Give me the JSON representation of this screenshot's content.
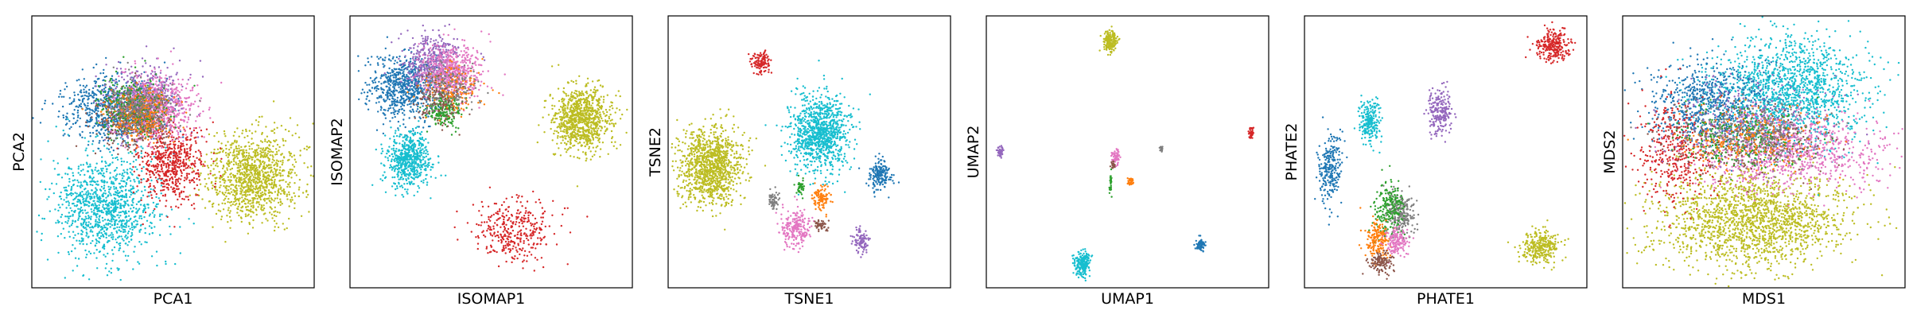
{
  "palette": {
    "blue": "#1f77b4",
    "orange": "#ff7f0e",
    "green": "#2ca02c",
    "red": "#d62728",
    "purple": "#9467bd",
    "brown": "#8c564b",
    "pink": "#e377c2",
    "gray": "#7f7f7f",
    "olive": "#bcbd22",
    "cyan": "#17becf"
  },
  "chart_data": [
    {
      "type": "scatter",
      "xlabel": "PCA1",
      "ylabel": "PCA2",
      "xlim": [
        0,
        1
      ],
      "ylim": [
        0,
        1
      ],
      "ticks": "none",
      "grid": false,
      "clusters": [
        {
          "color": "olive",
          "center": [
            0.78,
            0.41
          ],
          "spread": [
            0.08,
            0.08
          ],
          "n": 1100
        },
        {
          "color": "cyan",
          "center": [
            0.26,
            0.29
          ],
          "spread": [
            0.09,
            0.1
          ],
          "n": 1100
        },
        {
          "color": "blue",
          "center": [
            0.28,
            0.66
          ],
          "spread": [
            0.08,
            0.06
          ],
          "n": 700
        },
        {
          "color": "purple",
          "center": [
            0.4,
            0.7
          ],
          "spread": [
            0.07,
            0.06
          ],
          "n": 450
        },
        {
          "color": "red",
          "center": [
            0.49,
            0.46
          ],
          "spread": [
            0.06,
            0.07
          ],
          "n": 600
        },
        {
          "color": "pink",
          "center": [
            0.44,
            0.66
          ],
          "spread": [
            0.07,
            0.06
          ],
          "n": 700
        },
        {
          "color": "brown",
          "center": [
            0.36,
            0.62
          ],
          "spread": [
            0.06,
            0.05
          ],
          "n": 350
        },
        {
          "color": "green",
          "center": [
            0.36,
            0.66
          ],
          "spread": [
            0.06,
            0.05
          ],
          "n": 250
        },
        {
          "color": "orange",
          "center": [
            0.38,
            0.64
          ],
          "spread": [
            0.06,
            0.05
          ],
          "n": 250
        },
        {
          "color": "gray",
          "center": [
            0.38,
            0.66
          ],
          "spread": [
            0.06,
            0.05
          ],
          "n": 250
        }
      ]
    },
    {
      "type": "scatter",
      "xlabel": "ISOMAP1",
      "ylabel": "ISOMAP2",
      "xlim": [
        0,
        1
      ],
      "ylim": [
        0,
        1
      ],
      "ticks": "none",
      "grid": false,
      "clusters": [
        {
          "color": "olive",
          "center": [
            0.82,
            0.62
          ],
          "spread": [
            0.05,
            0.06
          ],
          "n": 900
        },
        {
          "color": "blue",
          "center": [
            0.19,
            0.74
          ],
          "spread": [
            0.06,
            0.06
          ],
          "n": 700
        },
        {
          "color": "purple",
          "center": [
            0.29,
            0.83
          ],
          "spread": [
            0.05,
            0.05
          ],
          "n": 400
        },
        {
          "color": "pink",
          "center": [
            0.36,
            0.79
          ],
          "spread": [
            0.05,
            0.05
          ],
          "n": 600
        },
        {
          "color": "cyan",
          "center": [
            0.21,
            0.47
          ],
          "spread": [
            0.04,
            0.05
          ],
          "n": 600
        },
        {
          "color": "red",
          "center": [
            0.58,
            0.21
          ],
          "spread": [
            0.07,
            0.06
          ],
          "n": 350
        },
        {
          "color": "green",
          "center": [
            0.33,
            0.65
          ],
          "spread": [
            0.03,
            0.03
          ],
          "n": 200
        },
        {
          "color": "orange",
          "center": [
            0.37,
            0.73
          ],
          "spread": [
            0.05,
            0.04
          ],
          "n": 150
        },
        {
          "color": "brown",
          "center": [
            0.31,
            0.69
          ],
          "spread": [
            0.04,
            0.05
          ],
          "n": 150
        },
        {
          "color": "gray",
          "center": [
            0.35,
            0.74
          ],
          "spread": [
            0.05,
            0.04
          ],
          "n": 150
        }
      ]
    },
    {
      "type": "scatter",
      "xlabel": "TSNE1",
      "ylabel": "TSNE2",
      "xlim": [
        0,
        1
      ],
      "ylim": [
        0,
        1
      ],
      "ticks": "none",
      "grid": false,
      "clusters": [
        {
          "color": "olive",
          "center": [
            0.15,
            0.45
          ],
          "spread": [
            0.055,
            0.07
          ],
          "n": 1100
        },
        {
          "color": "cyan",
          "center": [
            0.54,
            0.57
          ],
          "spread": [
            0.05,
            0.07
          ],
          "n": 1000
        },
        {
          "color": "red",
          "center": [
            0.33,
            0.83
          ],
          "spread": [
            0.015,
            0.02
          ],
          "n": 120
        },
        {
          "color": "blue",
          "center": [
            0.75,
            0.41
          ],
          "spread": [
            0.02,
            0.03
          ],
          "n": 180
        },
        {
          "color": "purple",
          "center": [
            0.68,
            0.17
          ],
          "spread": [
            0.015,
            0.025
          ],
          "n": 100
        },
        {
          "color": "pink",
          "center": [
            0.45,
            0.22
          ],
          "spread": [
            0.025,
            0.035
          ],
          "n": 220
        },
        {
          "color": "orange",
          "center": [
            0.54,
            0.33
          ],
          "spread": [
            0.015,
            0.022
          ],
          "n": 100
        },
        {
          "color": "gray",
          "center": [
            0.37,
            0.32
          ],
          "spread": [
            0.01,
            0.015
          ],
          "n": 60
        },
        {
          "color": "green",
          "center": [
            0.47,
            0.37
          ],
          "spread": [
            0.008,
            0.014
          ],
          "n": 40
        },
        {
          "color": "brown",
          "center": [
            0.54,
            0.23
          ],
          "spread": [
            0.012,
            0.012
          ],
          "n": 50
        }
      ]
    },
    {
      "type": "scatter",
      "xlabel": "UMAP1",
      "ylabel": "UMAP2",
      "xlim": [
        0,
        1
      ],
      "ylim": [
        0,
        1
      ],
      "ticks": "none",
      "grid": false,
      "clusters": [
        {
          "color": "olive",
          "center": [
            0.44,
            0.91
          ],
          "spread": [
            0.012,
            0.02
          ],
          "n": 200
        },
        {
          "color": "cyan",
          "center": [
            0.34,
            0.09
          ],
          "spread": [
            0.014,
            0.024
          ],
          "n": 200
        },
        {
          "color": "blue",
          "center": [
            0.76,
            0.16
          ],
          "spread": [
            0.008,
            0.012
          ],
          "n": 80
        },
        {
          "color": "red",
          "center": [
            0.94,
            0.57
          ],
          "spread": [
            0.005,
            0.01
          ],
          "n": 40
        },
        {
          "color": "purple",
          "center": [
            0.05,
            0.5
          ],
          "spread": [
            0.006,
            0.01
          ],
          "n": 40
        },
        {
          "color": "pink",
          "center": [
            0.46,
            0.48
          ],
          "spread": [
            0.008,
            0.012
          ],
          "n": 60
        },
        {
          "color": "orange",
          "center": [
            0.51,
            0.39
          ],
          "spread": [
            0.005,
            0.008
          ],
          "n": 30
        },
        {
          "color": "gray",
          "center": [
            0.62,
            0.51
          ],
          "spread": [
            0.003,
            0.005
          ],
          "n": 20
        },
        {
          "color": "green",
          "center": [
            0.44,
            0.38
          ],
          "spread": [
            0.003,
            0.02
          ],
          "n": 25
        },
        {
          "color": "brown",
          "center": [
            0.45,
            0.45
          ],
          "spread": [
            0.004,
            0.008
          ],
          "n": 20
        }
      ]
    },
    {
      "type": "scatter",
      "xlabel": "PHATE1",
      "ylabel": "PHATE2",
      "xlim": [
        0,
        1
      ],
      "ylim": [
        0,
        1
      ],
      "ticks": "none",
      "grid": false,
      "clusters": [
        {
          "color": "red",
          "center": [
            0.88,
            0.89
          ],
          "spread": [
            0.03,
            0.03
          ],
          "n": 250
        },
        {
          "color": "olive",
          "center": [
            0.84,
            0.15
          ],
          "spread": [
            0.035,
            0.03
          ],
          "n": 300
        },
        {
          "color": "blue",
          "center": [
            0.09,
            0.44
          ],
          "spread": [
            0.02,
            0.06
          ],
          "n": 250
        },
        {
          "color": "cyan",
          "center": [
            0.23,
            0.61
          ],
          "spread": [
            0.02,
            0.04
          ],
          "n": 220
        },
        {
          "color": "purple",
          "center": [
            0.48,
            0.65
          ],
          "spread": [
            0.02,
            0.04
          ],
          "n": 220
        },
        {
          "color": "gray",
          "center": [
            0.34,
            0.27
          ],
          "spread": [
            0.025,
            0.04
          ],
          "n": 250
        },
        {
          "color": "green",
          "center": [
            0.3,
            0.29
          ],
          "spread": [
            0.025,
            0.05
          ],
          "n": 200
        },
        {
          "color": "orange",
          "center": [
            0.26,
            0.17
          ],
          "spread": [
            0.025,
            0.04
          ],
          "n": 180
        },
        {
          "color": "pink",
          "center": [
            0.33,
            0.17
          ],
          "spread": [
            0.02,
            0.025
          ],
          "n": 150
        },
        {
          "color": "brown",
          "center": [
            0.27,
            0.09
          ],
          "spread": [
            0.02,
            0.02
          ],
          "n": 120
        }
      ]
    },
    {
      "type": "scatter",
      "xlabel": "MDS1",
      "ylabel": "MDS2",
      "xlim": [
        0,
        1
      ],
      "ylim": [
        0,
        1
      ],
      "ticks": "none",
      "grid": false,
      "clusters": [
        {
          "color": "olive",
          "center": [
            0.46,
            0.25
          ],
          "spread": [
            0.17,
            0.09
          ],
          "n": 1800
        },
        {
          "color": "cyan",
          "center": [
            0.59,
            0.72
          ],
          "spread": [
            0.14,
            0.1
          ],
          "n": 1500
        },
        {
          "color": "blue",
          "center": [
            0.31,
            0.68
          ],
          "spread": [
            0.1,
            0.08
          ],
          "n": 700
        },
        {
          "color": "pink",
          "center": [
            0.6,
            0.5
          ],
          "spread": [
            0.17,
            0.07
          ],
          "n": 900
        },
        {
          "color": "red",
          "center": [
            0.18,
            0.5
          ],
          "spread": [
            0.07,
            0.1
          ],
          "n": 400
        },
        {
          "color": "purple",
          "center": [
            0.45,
            0.6
          ],
          "spread": [
            0.14,
            0.08
          ],
          "n": 300
        },
        {
          "color": "brown",
          "center": [
            0.42,
            0.53
          ],
          "spread": [
            0.14,
            0.06
          ],
          "n": 250
        },
        {
          "color": "green",
          "center": [
            0.42,
            0.55
          ],
          "spread": [
            0.12,
            0.06
          ],
          "n": 250
        },
        {
          "color": "orange",
          "center": [
            0.46,
            0.55
          ],
          "spread": [
            0.13,
            0.06
          ],
          "n": 250
        },
        {
          "color": "gray",
          "center": [
            0.46,
            0.57
          ],
          "spread": [
            0.13,
            0.06
          ],
          "n": 250
        }
      ]
    }
  ]
}
